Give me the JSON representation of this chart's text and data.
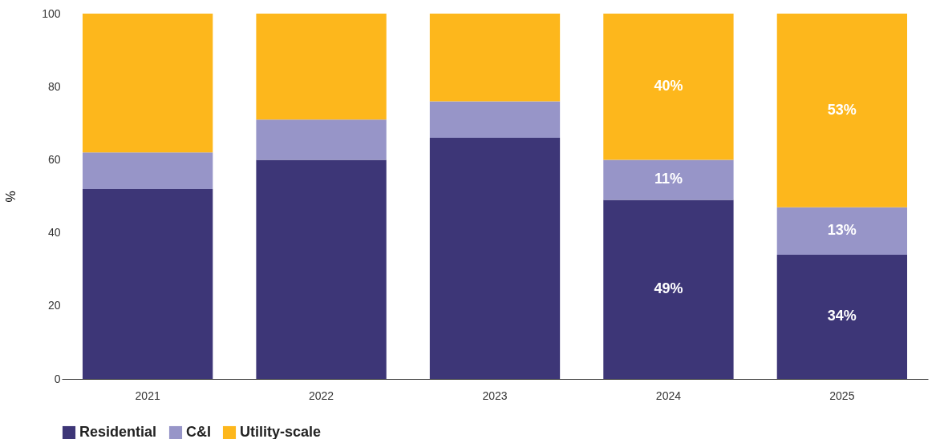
{
  "chart_data": {
    "type": "bar",
    "stacked": true,
    "categories": [
      "2021",
      "2022",
      "2023",
      "2024",
      "2025"
    ],
    "ylabel": "%",
    "ylim": [
      0,
      100
    ],
    "yticks": [
      0,
      20,
      40,
      60,
      80,
      100
    ],
    "legend": "bottom",
    "series": [
      {
        "name": "Residential",
        "color": "#3d3677",
        "values": [
          52,
          60,
          66,
          49,
          34
        ],
        "value_labels": [
          null,
          null,
          null,
          "49%",
          "34%"
        ]
      },
      {
        "name": "C&I",
        "color": "#9795c8",
        "values": [
          10,
          11,
          10,
          11,
          13
        ],
        "value_labels": [
          null,
          null,
          null,
          "11%",
          "13%"
        ]
      },
      {
        "name": "Utility-scale",
        "color": "#fdb71c",
        "values": [
          38,
          29,
          24,
          40,
          53
        ],
        "value_labels": [
          null,
          null,
          null,
          "40%",
          "53%"
        ]
      }
    ]
  }
}
